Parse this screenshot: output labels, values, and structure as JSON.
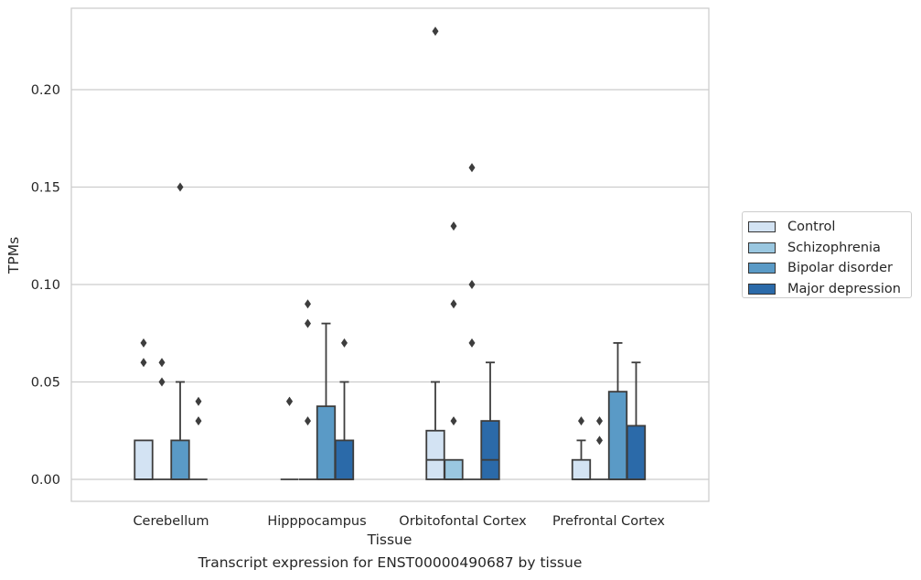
{
  "chart_data": {
    "type": "box",
    "ylabel": "TPMs",
    "xlabel": "Tissue",
    "caption": "Transcript expression for ENST00000490687 by tissue",
    "ylim": [
      -0.011,
      0.242
    ],
    "yticks": [
      "0.00",
      "0.05",
      "0.10",
      "0.15",
      "0.20"
    ],
    "ytick_values": [
      0,
      0.05,
      0.1,
      0.15,
      0.2
    ],
    "grid": true,
    "legend_position": "right",
    "categories": [
      "Cerebellum",
      "Hipppocampus",
      "Orbitofontal Cortex",
      "Prefrontal Cortex"
    ],
    "series": [
      {
        "name": "Control",
        "color": "#d3e3f3",
        "boxes": [
          {
            "q1": 0,
            "median": 0,
            "q3": 0.02,
            "whisker_low": 0,
            "whisker_high": 0.02,
            "outliers": [
              0.06,
              0.07
            ]
          },
          {
            "q1": 0,
            "median": 0,
            "q3": 0,
            "whisker_low": 0,
            "whisker_high": 0,
            "outliers": [
              0.04,
              0.04
            ]
          },
          {
            "q1": 0,
            "median": 0.01,
            "q3": 0.025,
            "whisker_low": 0,
            "whisker_high": 0.05,
            "outliers": [
              0.23
            ]
          },
          {
            "q1": 0,
            "median": 0,
            "q3": 0.01,
            "whisker_low": 0,
            "whisker_high": 0.02,
            "outliers": [
              0.03
            ]
          }
        ]
      },
      {
        "name": "Schizophrenia",
        "color": "#9ac7e0",
        "boxes": [
          {
            "q1": 0,
            "median": 0,
            "q3": 0,
            "whisker_low": 0,
            "whisker_high": 0,
            "outliers": [
              0.05,
              0.06
            ]
          },
          {
            "q1": 0,
            "median": 0,
            "q3": 0,
            "whisker_low": 0,
            "whisker_high": 0,
            "outliers": [
              0.03,
              0.08,
              0.09
            ]
          },
          {
            "q1": 0,
            "median": 0,
            "q3": 0.01,
            "whisker_low": 0,
            "whisker_high": 0.01,
            "outliers": [
              0.03,
              0.09,
              0.13
            ]
          },
          {
            "q1": 0,
            "median": 0,
            "q3": 0,
            "whisker_low": 0,
            "whisker_high": 0,
            "outliers": [
              0.02,
              0.03
            ]
          }
        ]
      },
      {
        "name": "Bipolar disorder",
        "color": "#5a9ac6",
        "boxes": [
          {
            "q1": 0,
            "median": 0,
            "q3": 0.02,
            "whisker_low": 0,
            "whisker_high": 0.05,
            "outliers": [
              0.15
            ]
          },
          {
            "q1": 0,
            "median": 0,
            "q3": 0.0375,
            "whisker_low": 0,
            "whisker_high": 0.08,
            "outliers": []
          },
          {
            "q1": 0,
            "median": 0,
            "q3": 0,
            "whisker_low": 0,
            "whisker_high": 0,
            "outliers": [
              0.07,
              0.1,
              0.16
            ]
          },
          {
            "q1": 0,
            "median": 0,
            "q3": 0.045,
            "whisker_low": 0,
            "whisker_high": 0.07,
            "outliers": []
          }
        ]
      },
      {
        "name": "Major depression",
        "color": "#2b6aa9",
        "boxes": [
          {
            "q1": 0,
            "median": 0,
            "q3": 0,
            "whisker_low": 0,
            "whisker_high": 0,
            "outliers": [
              0.03,
              0.04
            ]
          },
          {
            "q1": 0,
            "median": 0,
            "q3": 0.02,
            "whisker_low": 0,
            "whisker_high": 0.05,
            "outliers": [
              0.07
            ]
          },
          {
            "q1": 0,
            "median": 0.01,
            "q3": 0.03,
            "whisker_low": 0,
            "whisker_high": 0.06,
            "outliers": []
          },
          {
            "q1": 0,
            "median": 0,
            "q3": 0.0275,
            "whisker_low": 0,
            "whisker_high": 0.06,
            "outliers": []
          }
        ]
      }
    ]
  }
}
